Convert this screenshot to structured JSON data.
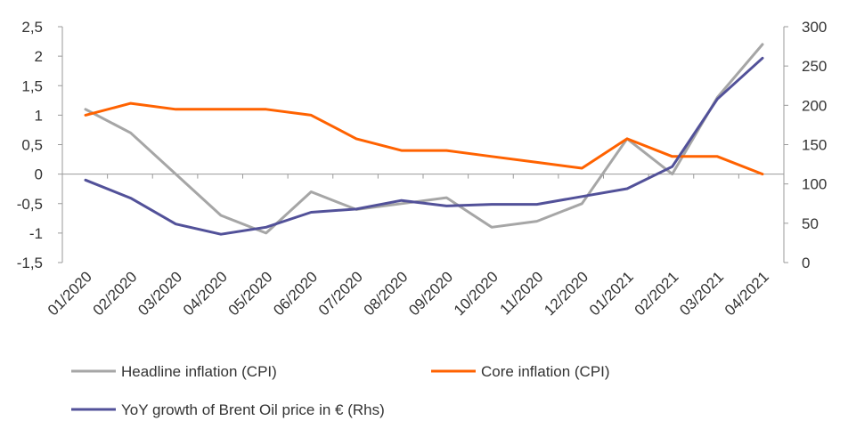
{
  "chart_data": {
    "type": "line",
    "categories": [
      "01/2020",
      "02/2020",
      "03/2020",
      "04/2020",
      "05/2020",
      "06/2020",
      "07/2020",
      "08/2020",
      "09/2020",
      "10/2020",
      "11/2020",
      "12/2020",
      "01/2021",
      "02/2021",
      "03/2021",
      "04/2021"
    ],
    "series": [
      {
        "name": "Headline inflation (CPI)",
        "axis": "left",
        "color": "#a6a6a6",
        "values": [
          1.1,
          0.7,
          0.0,
          -0.7,
          -1.0,
          -0.3,
          -0.6,
          -0.5,
          -0.4,
          -0.9,
          -0.8,
          -0.5,
          0.6,
          0.0,
          1.3,
          2.2
        ]
      },
      {
        "name": "Core inflation (CPI)",
        "axis": "left",
        "color": "#ff6200",
        "values": [
          1.0,
          1.2,
          1.1,
          1.1,
          1.1,
          1.0,
          0.6,
          0.4,
          0.4,
          0.3,
          0.2,
          0.1,
          0.6,
          0.3,
          0.3,
          0.0
        ]
      },
      {
        "name": "YoY growth of Brent Oil price in € (Rhs)",
        "axis": "right",
        "color": "#525199",
        "values": [
          105,
          82,
          49,
          36,
          45,
          64,
          68,
          79,
          72,
          74,
          74,
          84,
          94,
          122,
          208,
          260
        ]
      }
    ],
    "y_left": {
      "lim": [
        -1.5,
        2.5
      ],
      "ticks": [
        "2,5",
        "2",
        "1,5",
        "1",
        "0,5",
        "0",
        "-0,5",
        "-1",
        "-1,5"
      ],
      "tick_values": [
        2.5,
        2,
        1.5,
        1,
        0.5,
        0,
        -0.5,
        -1,
        -1.5
      ]
    },
    "y_right": {
      "lim": [
        0,
        300
      ],
      "ticks": [
        "300",
        "250",
        "200",
        "150",
        "100",
        "50",
        "0"
      ],
      "tick_values": [
        300,
        250,
        200,
        150,
        100,
        50,
        0
      ]
    },
    "grid": false,
    "legend_position": "bottom",
    "xlabel": "",
    "ylabel": ""
  }
}
